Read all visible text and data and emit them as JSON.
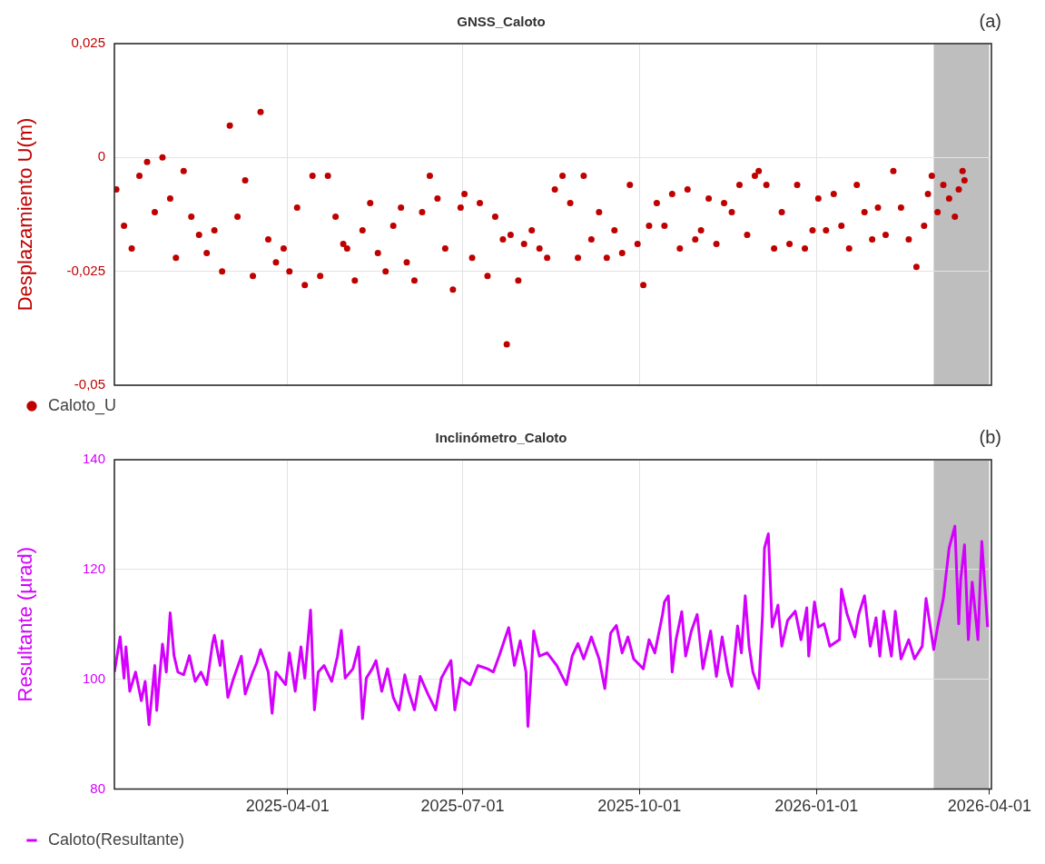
{
  "chart_data": [
    {
      "type": "scatter",
      "title": "GNSS_Caloto",
      "ylabel": "Desplazamiento U(m)",
      "annotations": [
        "(a)"
      ],
      "xlim": [
        "2025-01-01",
        "2026-04-02"
      ],
      "xticks": [
        "2025-04-01",
        "2025-07-01",
        "2025-10-01",
        "2026-01-01",
        "2026-04-01"
      ],
      "ylim": [
        -0.05,
        0.025
      ],
      "yticks": [
        {
          "value": -0.05,
          "label": "-0,05"
        },
        {
          "value": -0.025,
          "label": "-0,025"
        },
        0,
        {
          "value": 0.025,
          "label": "0,025"
        }
      ],
      "tick_labels": "y",
      "grid": true,
      "legend": "bottom left",
      "marker": "circle",
      "bands": [
        {
          "axis": "x",
          "from": "2026-03-03",
          "to": "2026-04-01",
          "color": "#bebebe"
        }
      ],
      "x": [
        "2025-01-02",
        "2025-01-06",
        "2025-01-10",
        "2025-01-14",
        "2025-01-18",
        "2025-01-22",
        "2025-01-26",
        "2025-01-30",
        "2025-02-02",
        "2025-02-06",
        "2025-02-10",
        "2025-02-14",
        "2025-02-18",
        "2025-02-22",
        "2025-02-26",
        "2025-03-02",
        "2025-03-06",
        "2025-03-10",
        "2025-03-14",
        "2025-03-18",
        "2025-03-22",
        "2025-03-26",
        "2025-03-30",
        "2025-04-02",
        "2025-04-06",
        "2025-04-10",
        "2025-04-14",
        "2025-04-18",
        "2025-04-22",
        "2025-04-26",
        "2025-04-30",
        "2025-05-02",
        "2025-05-06",
        "2025-05-10",
        "2025-05-14",
        "2025-05-18",
        "2025-05-22",
        "2025-05-26",
        "2025-05-30",
        "2025-06-02",
        "2025-06-06",
        "2025-06-10",
        "2025-06-14",
        "2025-06-18",
        "2025-06-22",
        "2025-06-26",
        "2025-06-30",
        "2025-07-02",
        "2025-07-06",
        "2025-07-10",
        "2025-07-14",
        "2025-07-18",
        "2025-07-22",
        "2025-07-24",
        "2025-07-26",
        "2025-07-30",
        "2025-08-02",
        "2025-08-06",
        "2025-08-10",
        "2025-08-14",
        "2025-08-18",
        "2025-08-22",
        "2025-08-26",
        "2025-08-30",
        "2025-09-02",
        "2025-09-06",
        "2025-09-10",
        "2025-09-14",
        "2025-09-18",
        "2025-09-22",
        "2025-09-26",
        "2025-09-30",
        "2025-10-03",
        "2025-10-06",
        "2025-10-10",
        "2025-10-14",
        "2025-10-18",
        "2025-10-22",
        "2025-10-26",
        "2025-10-30",
        "2025-11-02",
        "2025-11-06",
        "2025-11-10",
        "2025-11-14",
        "2025-11-18",
        "2025-11-22",
        "2025-11-26",
        "2025-11-30",
        "2025-12-02",
        "2025-12-06",
        "2025-12-10",
        "2025-12-14",
        "2025-12-18",
        "2025-12-22",
        "2025-12-26",
        "2025-12-30",
        "2026-01-02",
        "2026-01-06",
        "2026-01-10",
        "2026-01-14",
        "2026-01-18",
        "2026-01-22",
        "2026-01-26",
        "2026-01-30",
        "2026-02-02",
        "2026-02-06",
        "2026-02-10",
        "2026-02-14",
        "2026-02-18",
        "2026-02-22",
        "2026-02-26",
        "2026-02-28",
        "2026-03-02",
        "2026-03-05",
        "2026-03-08",
        "2026-03-11",
        "2026-03-14",
        "2026-03-16",
        "2026-03-18",
        "2026-03-19"
      ],
      "series": [
        {
          "name": "Caloto_U",
          "color": "#c00000",
          "values": [
            -0.007,
            -0.015,
            -0.02,
            -0.004,
            -0.001,
            -0.012,
            0.0,
            -0.009,
            -0.022,
            -0.003,
            -0.013,
            -0.017,
            -0.021,
            -0.016,
            -0.025,
            0.007,
            -0.013,
            -0.005,
            -0.026,
            0.01,
            -0.018,
            -0.023,
            -0.02,
            -0.025,
            -0.011,
            -0.028,
            -0.004,
            -0.026,
            -0.004,
            -0.013,
            -0.019,
            -0.02,
            -0.027,
            -0.016,
            -0.01,
            -0.021,
            -0.025,
            -0.015,
            -0.011,
            -0.023,
            -0.027,
            -0.012,
            -0.004,
            -0.009,
            -0.02,
            -0.029,
            -0.011,
            -0.008,
            -0.022,
            -0.01,
            -0.026,
            -0.013,
            -0.018,
            -0.041,
            -0.017,
            -0.027,
            -0.019,
            -0.016,
            -0.02,
            -0.022,
            -0.007,
            -0.004,
            -0.01,
            -0.022,
            -0.004,
            -0.018,
            -0.012,
            -0.022,
            -0.016,
            -0.021,
            -0.006,
            -0.019,
            -0.028,
            -0.015,
            -0.01,
            -0.015,
            -0.008,
            -0.02,
            -0.007,
            -0.018,
            -0.016,
            -0.009,
            -0.019,
            -0.01,
            -0.012,
            -0.006,
            -0.017,
            -0.004,
            -0.003,
            -0.006,
            -0.02,
            -0.012,
            -0.019,
            -0.006,
            -0.02,
            -0.016,
            -0.009,
            -0.016,
            -0.008,
            -0.015,
            -0.02,
            -0.006,
            -0.012,
            -0.018,
            -0.011,
            -0.017,
            -0.003,
            -0.011,
            -0.018,
            -0.024,
            -0.015,
            -0.008,
            -0.004,
            -0.012,
            -0.006,
            -0.009,
            -0.013,
            -0.007,
            -0.003,
            -0.005
          ]
        }
      ]
    },
    {
      "type": "line",
      "title": "Inclinómetro_Caloto",
      "ylabel": "Resultante (µrad)",
      "annotations": [
        "(b)"
      ],
      "xlim": [
        "2025-01-01",
        "2026-04-02"
      ],
      "xticks": [
        "2025-04-01",
        "2025-07-01",
        "2025-10-01",
        "2026-01-01",
        "2026-04-01"
      ],
      "ylim": [
        80,
        140
      ],
      "yticks": [
        80,
        100,
        120,
        140
      ],
      "grid": true,
      "legend": "bottom left",
      "bands": [
        {
          "axis": "x",
          "from": "2026-03-03",
          "to": "2026-04-01",
          "color": "#bebebe"
        }
      ],
      "x": [
        "2025-01-01",
        "2025-01-04",
        "2025-01-06",
        "2025-01-07",
        "2025-01-09",
        "2025-01-12",
        "2025-01-15",
        "2025-01-17",
        "2025-01-19",
        "2025-01-22",
        "2025-01-23",
        "2025-01-26",
        "2025-01-28",
        "2025-01-30",
        "2025-02-01",
        "2025-02-03",
        "2025-02-06",
        "2025-02-09",
        "2025-02-12",
        "2025-02-15",
        "2025-02-18",
        "2025-02-21",
        "2025-02-22",
        "2025-02-25",
        "2025-02-26",
        "2025-03-01",
        "2025-03-04",
        "2025-03-08",
        "2025-03-10",
        "2025-03-14",
        "2025-03-16",
        "2025-03-18",
        "2025-03-22",
        "2025-03-24",
        "2025-03-26",
        "2025-03-31",
        "2025-04-02",
        "2025-04-05",
        "2025-04-08",
        "2025-04-10",
        "2025-04-13",
        "2025-04-15",
        "2025-04-17",
        "2025-04-20",
        "2025-04-24",
        "2025-04-27",
        "2025-04-29",
        "2025-05-01",
        "2025-05-05",
        "2025-05-08",
        "2025-05-10",
        "2025-05-12",
        "2025-05-15",
        "2025-05-17",
        "2025-05-20",
        "2025-05-23",
        "2025-05-26",
        "2025-05-29",
        "2025-06-01",
        "2025-06-03",
        "2025-06-06",
        "2025-06-09",
        "2025-06-13",
        "2025-06-17",
        "2025-06-20",
        "2025-06-25",
        "2025-06-27",
        "2025-06-30",
        "2025-07-05",
        "2025-07-09",
        "2025-07-14",
        "2025-07-17",
        "2025-07-20",
        "2025-07-25",
        "2025-07-28",
        "2025-07-31",
        "2025-08-03",
        "2025-08-04",
        "2025-08-07",
        "2025-08-10",
        "2025-08-14",
        "2025-08-19",
        "2025-08-24",
        "2025-08-27",
        "2025-08-30",
        "2025-09-02",
        "2025-09-06",
        "2025-09-10",
        "2025-09-13",
        "2025-09-16",
        "2025-09-19",
        "2025-09-22",
        "2025-09-25",
        "2025-09-28",
        "2025-10-03",
        "2025-10-06",
        "2025-10-09",
        "2025-10-13",
        "2025-10-14",
        "2025-10-16",
        "2025-10-18",
        "2025-10-20",
        "2025-10-23",
        "2025-10-25",
        "2025-10-28",
        "2025-10-31",
        "2025-11-03",
        "2025-11-07",
        "2025-11-10",
        "2025-11-13",
        "2025-11-16",
        "2025-11-18",
        "2025-11-21",
        "2025-11-23",
        "2025-11-25",
        "2025-11-27",
        "2025-11-29",
        "2025-12-02",
        "2025-12-04",
        "2025-12-05",
        "2025-12-07",
        "2025-12-09",
        "2025-12-12",
        "2025-12-14",
        "2025-12-17",
        "2025-12-21",
        "2025-12-24",
        "2025-12-27",
        "2025-12-28",
        "2025-12-31",
        "2026-01-02",
        "2026-01-05",
        "2026-01-08",
        "2026-01-13",
        "2026-01-14",
        "2026-01-17",
        "2026-01-21",
        "2026-01-23",
        "2026-01-26",
        "2026-01-29",
        "2026-02-01",
        "2026-02-03",
        "2026-02-05",
        "2026-02-09",
        "2026-02-11",
        "2026-02-14",
        "2026-02-18",
        "2026-02-21",
        "2026-02-25",
        "2026-02-27",
        "2026-03-03",
        "2026-03-05",
        "2026-03-08",
        "2026-03-11",
        "2026-03-14",
        "2026-03-16",
        "2026-03-17",
        "2026-03-19",
        "2026-03-21",
        "2026-03-23",
        "2026-03-26",
        "2026-03-28",
        "2026-03-31"
      ],
      "series": [
        {
          "name": "Caloto(Resultante)",
          "color": "#d400ff",
          "values": [
            101.3,
            107.7,
            100.2,
            105.9,
            97.8,
            101.3,
            96.1,
            99.6,
            91.7,
            102.5,
            94.3,
            106.4,
            101.3,
            112.1,
            104.3,
            101.3,
            100.8,
            104.3,
            99.6,
            101.3,
            99.0,
            106.5,
            108.0,
            102.5,
            107.0,
            96.7,
            100.2,
            104.2,
            97.3,
            101.3,
            103.0,
            105.4,
            101.3,
            93.8,
            101.3,
            99.0,
            104.8,
            97.8,
            105.9,
            100.2,
            112.6,
            94.4,
            101.3,
            102.5,
            99.6,
            104.2,
            108.9,
            100.2,
            101.9,
            105.9,
            92.8,
            100.2,
            101.9,
            103.4,
            97.8,
            101.9,
            96.7,
            94.4,
            100.8,
            97.8,
            94.4,
            100.5,
            97.3,
            94.4,
            100.2,
            103.4,
            94.4,
            100.2,
            99.0,
            102.5,
            101.9,
            101.3,
            104.2,
            109.4,
            102.5,
            107.0,
            101.3,
            91.4,
            108.8,
            104.2,
            104.8,
            102.5,
            99.0,
            104.2,
            106.5,
            103.7,
            107.7,
            103.7,
            98.3,
            108.4,
            109.8,
            104.8,
            107.7,
            103.7,
            101.9,
            107.2,
            104.8,
            111.8,
            114.1,
            115.2,
            101.3,
            107.2,
            112.3,
            104.2,
            108.8,
            111.8,
            101.9,
            108.8,
            100.5,
            107.7,
            101.3,
            98.7,
            109.7,
            104.8,
            115.2,
            106.0,
            101.3,
            98.3,
            111.8,
            123.9,
            126.5,
            109.5,
            113.5,
            106.0,
            110.7,
            112.4,
            107.2,
            113.0,
            104.2,
            114.1,
            109.5,
            110.1,
            106.0,
            107.2,
            116.4,
            111.8,
            107.7,
            111.8,
            115.2,
            106.0,
            111.2,
            104.2,
            112.4,
            104.2,
            112.4,
            103.7,
            107.2,
            103.7,
            106.0,
            114.7,
            105.4,
            109.5,
            114.7,
            123.9,
            127.9,
            110.1,
            118.1,
            124.5,
            107.2,
            117.7,
            107.2,
            125.1,
            109.5
          ]
        }
      ]
    }
  ]
}
